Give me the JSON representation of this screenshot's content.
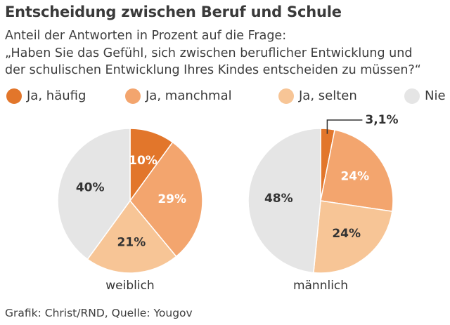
{
  "title": "Entscheidung zwischen Beruf und Schule",
  "subtitle_lines": [
    "Anteil der Antworten in Prozent auf die Frage:",
    "„Haben Sie das Gefühl, sich zwischen beruflicher Entwicklung und",
    "der schulischen Entwicklung Ihres Kindes entscheiden zu müssen?“"
  ],
  "footer": "Grafik: Christ/RND, Quelle: Yougov",
  "chart_data": {
    "type": "pie",
    "title": "Entscheidung zwischen Beruf und Schule",
    "legend_position": "top",
    "categories": [
      "Ja, häufig",
      "Ja, manchmal",
      "Ja, selten",
      "Nie"
    ],
    "colors": [
      "#e2762b",
      "#f3a56e",
      "#f7c596",
      "#e5e5e5"
    ],
    "series": [
      {
        "name": "weiblich",
        "values": [
          10,
          29,
          21,
          40
        ],
        "labels": [
          "10%",
          "29%",
          "21%",
          "40%"
        ]
      },
      {
        "name": "männlich",
        "values": [
          3.1,
          24,
          24,
          48
        ],
        "labels": [
          "3,1%",
          "24%",
          "24%",
          "48%"
        ]
      }
    ]
  }
}
